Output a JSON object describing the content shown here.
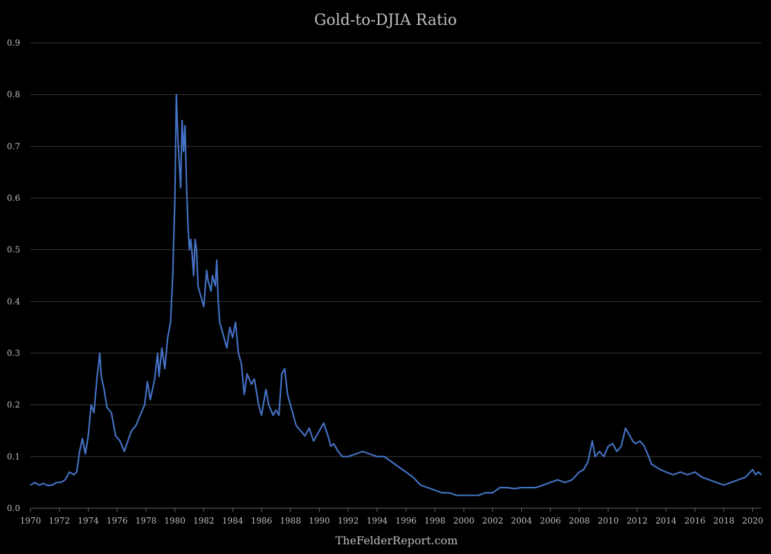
{
  "chart_data": {
    "type": "line",
    "title": "Gold-to-DJIA Ratio",
    "credit": "TheFelderReport.com",
    "xlabel": "",
    "ylabel": "",
    "grid": true,
    "legend": "none",
    "xlim": [
      1970,
      2020.6
    ],
    "ylim": [
      0,
      0.9
    ],
    "y_ticks": [
      "0.0",
      "0.1",
      "0.2",
      "0.3",
      "0.4",
      "0.5",
      "0.6",
      "0.7",
      "0.8",
      "0.9"
    ],
    "x_ticks": [
      "1970",
      "1972",
      "1974",
      "1976",
      "1978",
      "1980",
      "1982",
      "1984",
      "1986",
      "1988",
      "1990",
      "1992",
      "1994",
      "1996",
      "1998",
      "2000",
      "2002",
      "2004",
      "2006",
      "2008",
      "2010",
      "2012",
      "2014",
      "2016",
      "2018",
      "2020"
    ],
    "colors": {
      "series": "#4472c4",
      "background": "#000000",
      "text": "#bfbfbf",
      "grid": "#3a3a3a"
    },
    "series": [
      {
        "x": [
          1970.0,
          1970.3,
          1970.6,
          1970.9,
          1971.2,
          1971.5,
          1971.8,
          1972.1,
          1972.4,
          1972.7,
          1973.0,
          1973.2,
          1973.4,
          1973.6,
          1973.8,
          1974.0,
          1974.2,
          1974.4,
          1974.6,
          1974.8,
          1974.9,
          1975.1,
          1975.3,
          1975.6,
          1975.9,
          1976.2,
          1976.5,
          1976.8,
          1977.0,
          1977.3,
          1977.6,
          1977.9,
          1978.1,
          1978.3,
          1978.6,
          1978.8,
          1978.9,
          1979.1,
          1979.3,
          1979.5,
          1979.7,
          1979.85,
          1980.0,
          1980.1,
          1980.2,
          1980.4,
          1980.5,
          1980.6,
          1980.7,
          1980.8,
          1980.9,
          1981.0,
          1981.1,
          1981.2,
          1981.3,
          1981.4,
          1981.5,
          1981.6,
          1981.8,
          1982.0,
          1982.2,
          1982.3,
          1982.5,
          1982.6,
          1982.8,
          1982.9,
          1983.0,
          1983.1,
          1983.3,
          1983.6,
          1983.8,
          1984.0,
          1984.2,
          1984.4,
          1984.6,
          1984.8,
          1985.0,
          1985.3,
          1985.5,
          1985.8,
          1986.0,
          1986.3,
          1986.5,
          1986.8,
          1987.0,
          1987.2,
          1987.4,
          1987.6,
          1987.8,
          1987.9,
          1988.0,
          1988.2,
          1988.4,
          1988.7,
          1989.0,
          1989.3,
          1989.6,
          1990.0,
          1990.3,
          1990.6,
          1990.8,
          1991.0,
          1991.3,
          1991.6,
          1992.0,
          1992.5,
          1993.0,
          1993.5,
          1994.0,
          1994.5,
          1995.0,
          1995.5,
          1996.0,
          1996.5,
          1997.0,
          1997.5,
          1998.0,
          1998.5,
          1999.0,
          1999.5,
          2000.0,
          2000.5,
          2001.0,
          2001.5,
          2002.0,
          2002.5,
          2003.0,
          2003.5,
          2004.0,
          2004.5,
          2005.0,
          2005.5,
          2006.0,
          2006.5,
          2007.0,
          2007.5,
          2008.0,
          2008.3,
          2008.6,
          2008.9,
          2009.1,
          2009.4,
          2009.7,
          2010.0,
          2010.3,
          2010.6,
          2010.9,
          2011.2,
          2011.5,
          2011.7,
          2011.9,
          2012.2,
          2012.5,
          2012.8,
          2013.0,
          2013.3,
          2013.6,
          2014.0,
          2014.5,
          2015.0,
          2015.5,
          2016.0,
          2016.5,
          2017.0,
          2017.5,
          2018.0,
          2018.5,
          2019.0,
          2019.5,
          2020.0,
          2020.2,
          2020.4,
          2020.6
        ],
        "y": [
          0.045,
          0.05,
          0.045,
          0.048,
          0.044,
          0.045,
          0.05,
          0.05,
          0.055,
          0.07,
          0.065,
          0.07,
          0.11,
          0.135,
          0.105,
          0.14,
          0.2,
          0.185,
          0.25,
          0.3,
          0.255,
          0.23,
          0.195,
          0.185,
          0.14,
          0.13,
          0.11,
          0.135,
          0.15,
          0.16,
          0.18,
          0.2,
          0.245,
          0.21,
          0.25,
          0.3,
          0.255,
          0.31,
          0.27,
          0.33,
          0.36,
          0.45,
          0.6,
          0.8,
          0.72,
          0.62,
          0.75,
          0.69,
          0.74,
          0.63,
          0.55,
          0.5,
          0.52,
          0.49,
          0.45,
          0.52,
          0.5,
          0.43,
          0.41,
          0.39,
          0.46,
          0.44,
          0.42,
          0.45,
          0.43,
          0.48,
          0.4,
          0.36,
          0.34,
          0.31,
          0.35,
          0.33,
          0.36,
          0.3,
          0.28,
          0.22,
          0.26,
          0.24,
          0.25,
          0.2,
          0.18,
          0.23,
          0.2,
          0.18,
          0.19,
          0.18,
          0.26,
          0.27,
          0.22,
          0.21,
          0.2,
          0.18,
          0.16,
          0.15,
          0.14,
          0.155,
          0.13,
          0.15,
          0.165,
          0.14,
          0.12,
          0.125,
          0.11,
          0.1,
          0.1,
          0.105,
          0.11,
          0.105,
          0.1,
          0.1,
          0.09,
          0.08,
          0.07,
          0.06,
          0.045,
          0.04,
          0.035,
          0.03,
          0.03,
          0.025,
          0.025,
          0.025,
          0.025,
          0.03,
          0.03,
          0.04,
          0.04,
          0.038,
          0.04,
          0.04,
          0.04,
          0.045,
          0.05,
          0.055,
          0.05,
          0.055,
          0.07,
          0.075,
          0.09,
          0.13,
          0.1,
          0.11,
          0.1,
          0.12,
          0.125,
          0.11,
          0.12,
          0.155,
          0.14,
          0.13,
          0.125,
          0.13,
          0.12,
          0.1,
          0.085,
          0.08,
          0.075,
          0.07,
          0.065,
          0.07,
          0.065,
          0.07,
          0.06,
          0.055,
          0.05,
          0.045,
          0.05,
          0.055,
          0.06,
          0.075,
          0.065,
          0.07,
          0.065
        ]
      }
    ]
  }
}
